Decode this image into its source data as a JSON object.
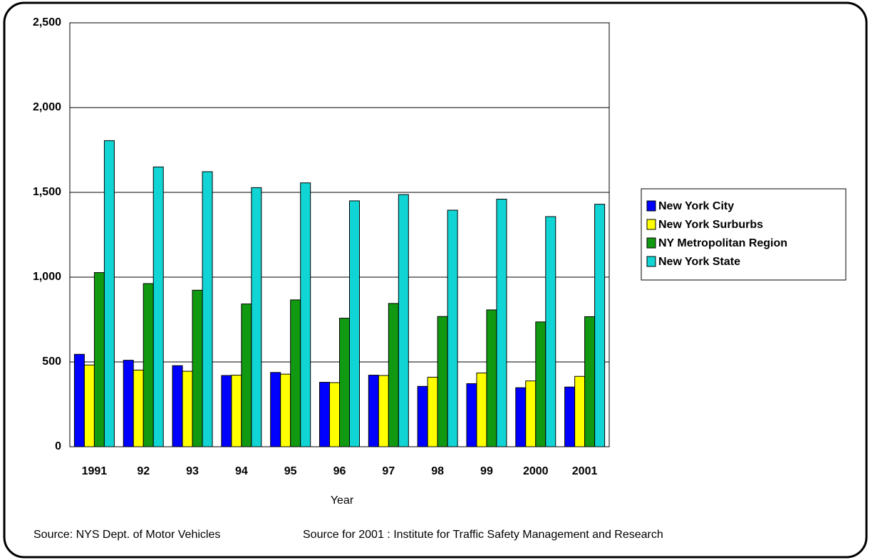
{
  "chart_data": {
    "type": "bar",
    "x_label": "Year",
    "annotations": [
      "Source: NYS Dept. of Motor Vehicles",
      "Source for 2001 : Institute for Traffic Safety Management and Research"
    ],
    "categories": [
      "1991",
      "92",
      "93",
      "94",
      "95",
      "96",
      "97",
      "98",
      "99",
      "2000",
      "2001"
    ],
    "series": [
      {
        "name": "New York City",
        "color": "#0000ff",
        "values": [
          545,
          510,
          478,
          420,
          438,
          380,
          422,
          356,
          372,
          348,
          352
        ]
      },
      {
        "name": "New York Surburbs",
        "color": "#ffff00",
        "values": [
          482,
          452,
          445,
          422,
          428,
          378,
          420,
          410,
          435,
          388,
          415
        ]
      },
      {
        "name": "NY Metropolitan Region",
        "color": "#119911",
        "values": [
          1027,
          962,
          923,
          842,
          866,
          758,
          845,
          768,
          807,
          736,
          767
        ]
      },
      {
        "name": "New York State",
        "color": "#11d4d4",
        "values": [
          1805,
          1650,
          1622,
          1528,
          1556,
          1450,
          1487,
          1395,
          1460,
          1357,
          1430
        ]
      }
    ],
    "ylim": [
      0,
      2500
    ],
    "yticks": [
      0,
      500,
      {
        "value": 1000,
        "label": "1,000"
      },
      {
        "value": 1500,
        "label": "1,500"
      },
      {
        "value": 2000,
        "label": "2,000"
      },
      {
        "value": 2500,
        "label": "2,500"
      }
    ],
    "grid": true,
    "legend": "right"
  }
}
